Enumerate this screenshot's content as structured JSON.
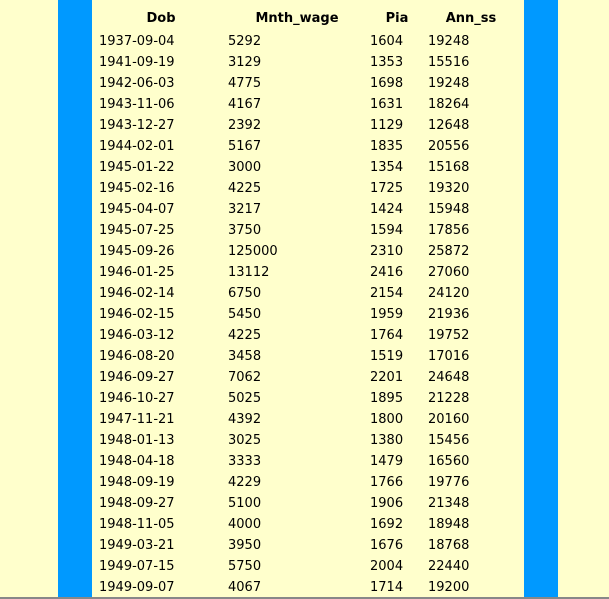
{
  "colors": {
    "background": "#ffffcc",
    "stripe": "#0099ff"
  },
  "table": {
    "headers": [
      "Dob",
      "Mnth_wage",
      "Pia",
      "Ann_ss"
    ],
    "rows": [
      [
        "1937-09-04",
        "5292",
        "1604",
        "19248"
      ],
      [
        "1941-09-19",
        "3129",
        "1353",
        "15516"
      ],
      [
        "1942-06-03",
        "4775",
        "1698",
        "19248"
      ],
      [
        "1943-11-06",
        "4167",
        "1631",
        "18264"
      ],
      [
        "1943-12-27",
        "2392",
        "1129",
        "12648"
      ],
      [
        "1944-02-01",
        "5167",
        "1835",
        "20556"
      ],
      [
        "1945-01-22",
        "3000",
        "1354",
        "15168"
      ],
      [
        "1945-02-16",
        "4225",
        "1725",
        "19320"
      ],
      [
        "1945-04-07",
        "3217",
        "1424",
        "15948"
      ],
      [
        "1945-07-25",
        "3750",
        "1594",
        "17856"
      ],
      [
        "1945-09-26",
        "125000",
        "2310",
        "25872"
      ],
      [
        "1946-01-25",
        "13112",
        "2416",
        "27060"
      ],
      [
        "1946-02-14",
        "6750",
        "2154",
        "24120"
      ],
      [
        "1946-02-15",
        "5450",
        "1959",
        "21936"
      ],
      [
        "1946-03-12",
        "4225",
        "1764",
        "19752"
      ],
      [
        "1946-08-20",
        "3458",
        "1519",
        "17016"
      ],
      [
        "1946-09-27",
        "7062",
        "2201",
        "24648"
      ],
      [
        "1946-10-27",
        "5025",
        "1895",
        "21228"
      ],
      [
        "1947-11-21",
        "4392",
        "1800",
        "20160"
      ],
      [
        "1948-01-13",
        "3025",
        "1380",
        "15456"
      ],
      [
        "1948-04-18",
        "3333",
        "1479",
        "16560"
      ],
      [
        "1948-09-19",
        "4229",
        "1766",
        "19776"
      ],
      [
        "1948-09-27",
        "5100",
        "1906",
        "21348"
      ],
      [
        "1948-11-05",
        "4000",
        "1692",
        "18948"
      ],
      [
        "1949-03-21",
        "3950",
        "1676",
        "18768"
      ],
      [
        "1949-07-15",
        "5750",
        "2004",
        "22440"
      ],
      [
        "1949-09-07",
        "4067",
        "1714",
        "19200"
      ]
    ]
  }
}
